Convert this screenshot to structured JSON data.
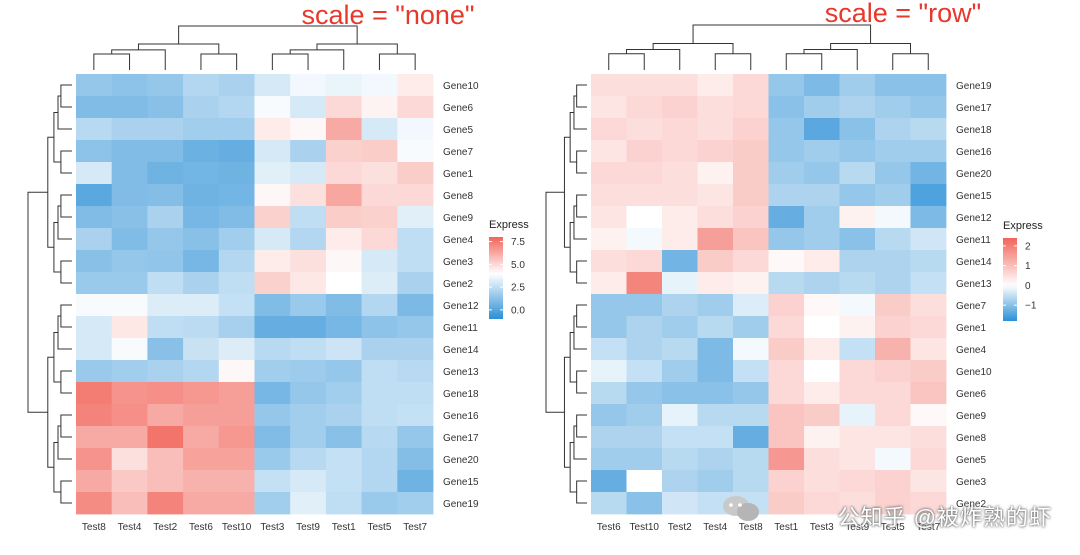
{
  "watermark": "公知乎 @被炸熟的虾",
  "chart_data": [
    {
      "type": "heatmap",
      "title": "scale = \"none\"",
      "legend": {
        "title": "Express",
        "ticks": [
          0.0,
          2.5,
          5.0,
          7.5
        ],
        "tick_labels": [
          "0.0",
          "2.5",
          "5.0",
          "7.5"
        ],
        "range": [
          -1,
          8
        ],
        "colors": [
          "#2b8fd6",
          "#ffffff",
          "#f1655a"
        ],
        "mid": 4.0
      },
      "columns": [
        "Test8",
        "Test4",
        "Test2",
        "Test6",
        "Test10",
        "Test3",
        "Test9",
        "Test1",
        "Test5",
        "Test7"
      ],
      "rows": [
        "Gene10",
        "Gene6",
        "Gene5",
        "Gene7",
        "Gene1",
        "Gene8",
        "Gene9",
        "Gene4",
        "Gene3",
        "Gene2",
        "Gene12",
        "Gene11",
        "Gene14",
        "Gene13",
        "Gene18",
        "Gene16",
        "Gene17",
        "Gene20",
        "Gene15",
        "Gene19"
      ],
      "values": [
        [
          1.5,
          1.3,
          1.5,
          2.2,
          2.0,
          3.0,
          3.7,
          3.5,
          3.7,
          4.5
        ],
        [
          1.0,
          1.0,
          1.2,
          2.0,
          2.2,
          3.8,
          3.0,
          5.0,
          4.3,
          5.0
        ],
        [
          2.3,
          2.0,
          2.0,
          1.8,
          1.8,
          4.5,
          4.2,
          6.2,
          3.0,
          3.7
        ],
        [
          1.3,
          1.0,
          1.0,
          0.5,
          0.4,
          3.0,
          2.0,
          5.2,
          5.3,
          3.8
        ],
        [
          3.0,
          1.0,
          0.6,
          0.7,
          0.6,
          3.3,
          3.0,
          5.0,
          4.8,
          5.3
        ],
        [
          0.1,
          1.0,
          1.1,
          0.6,
          0.7,
          4.2,
          4.8,
          6.3,
          5.0,
          5.0
        ],
        [
          1.0,
          1.2,
          2.0,
          0.8,
          1.0,
          5.2,
          2.5,
          5.3,
          5.2,
          3.3
        ],
        [
          2.0,
          1.0,
          1.5,
          1.2,
          1.8,
          3.0,
          2.2,
          4.5,
          5.0,
          2.5
        ],
        [
          1.2,
          1.5,
          1.4,
          0.8,
          2.2,
          4.5,
          4.8,
          4.2,
          3.0,
          2.5
        ],
        [
          1.6,
          1.6,
          2.5,
          2.0,
          2.5,
          5.2,
          4.6,
          4.0,
          3.2,
          2.0
        ],
        [
          3.8,
          3.8,
          3.2,
          3.2,
          2.6,
          1.0,
          1.6,
          1.0,
          2.2,
          0.9
        ],
        [
          3.0,
          4.6,
          2.5,
          2.4,
          1.9,
          0.4,
          0.4,
          0.8,
          1.3,
          1.5
        ],
        [
          3.0,
          3.8,
          1.2,
          2.7,
          3.2,
          2.3,
          2.5,
          2.8,
          2.0,
          2.0
        ],
        [
          1.6,
          1.8,
          2.0,
          2.2,
          4.2,
          1.8,
          1.7,
          1.5,
          2.5,
          2.3
        ],
        [
          7.4,
          6.8,
          6.9,
          6.7,
          6.5,
          0.8,
          1.5,
          1.8,
          2.5,
          2.5
        ],
        [
          7.2,
          6.9,
          6.2,
          6.5,
          6.5,
          1.5,
          1.8,
          2.0,
          2.5,
          2.6
        ],
        [
          6.2,
          6.2,
          7.6,
          6.2,
          6.7,
          1.0,
          1.8,
          1.2,
          2.3,
          1.5
        ],
        [
          6.8,
          4.8,
          5.7,
          6.4,
          6.4,
          1.6,
          2.3,
          2.6,
          2.2,
          1.1
        ],
        [
          6.2,
          5.4,
          5.7,
          6.0,
          6.0,
          2.6,
          3.0,
          2.6,
          2.2,
          0.6
        ],
        [
          7.0,
          5.7,
          7.2,
          6.2,
          6.2,
          1.8,
          3.3,
          2.5,
          1.6,
          1.8
        ]
      ]
    },
    {
      "type": "heatmap",
      "title": "scale = \"row\"",
      "legend": {
        "title": "Express",
        "ticks": [
          -1,
          0,
          1,
          2
        ],
        "tick_labels": [
          "−1",
          "0",
          "1",
          "2"
        ],
        "range": [
          -1.8,
          2.4
        ],
        "colors": [
          "#2b8fd6",
          "#ffffff",
          "#f1655a"
        ],
        "mid": 0
      },
      "columns": [
        "Test6",
        "Test10",
        "Test2",
        "Test4",
        "Test8",
        "Test1",
        "Test3",
        "Test9",
        "Test5",
        "Test7"
      ],
      "rows": [
        "Gene19",
        "Gene17",
        "Gene18",
        "Gene16",
        "Gene20",
        "Gene15",
        "Gene12",
        "Gene11",
        "Gene14",
        "Gene13",
        "Gene7",
        "Gene1",
        "Gene4",
        "Gene10",
        "Gene6",
        "Gene9",
        "Gene8",
        "Gene5",
        "Gene3",
        "Gene2"
      ],
      "values": [
        [
          0.5,
          0.5,
          0.5,
          0.3,
          0.6,
          -0.9,
          -1.1,
          -0.8,
          -1.0,
          -1.0
        ],
        [
          0.4,
          0.6,
          0.7,
          0.5,
          0.6,
          -1.0,
          -0.8,
          -0.7,
          -0.8,
          -0.9
        ],
        [
          0.6,
          0.5,
          0.6,
          0.5,
          0.7,
          -0.9,
          -1.4,
          -1.0,
          -0.7,
          -0.6
        ],
        [
          0.4,
          0.7,
          0.6,
          0.7,
          0.8,
          -0.9,
          -0.8,
          -0.9,
          -0.8,
          -0.8
        ],
        [
          0.6,
          0.6,
          0.5,
          0.2,
          0.8,
          -0.8,
          -0.9,
          -0.6,
          -0.9,
          -1.2
        ],
        [
          0.5,
          0.5,
          0.5,
          0.4,
          0.8,
          -0.7,
          -0.7,
          -0.9,
          -0.8,
          -1.5
        ],
        [
          0.4,
          0.0,
          0.3,
          0.5,
          0.7,
          -1.3,
          -0.8,
          0.2,
          -0.1,
          -1.1
        ],
        [
          0.2,
          -0.1,
          0.3,
          1.5,
          0.9,
          -0.9,
          -0.8,
          -1.0,
          -0.6,
          -0.4
        ],
        [
          0.5,
          0.6,
          -1.2,
          0.8,
          0.6,
          0.1,
          0.3,
          -0.7,
          -0.7,
          -0.6
        ],
        [
          0.3,
          1.9,
          -0.2,
          0.3,
          0.2,
          -0.6,
          -0.7,
          -0.6,
          -0.7,
          -0.5
        ],
        [
          -0.9,
          -0.9,
          -0.7,
          -0.8,
          -0.3,
          0.7,
          0.1,
          -0.1,
          0.8,
          0.5
        ],
        [
          -0.9,
          -0.7,
          -0.8,
          -0.6,
          -0.8,
          0.6,
          0.0,
          0.2,
          0.7,
          0.6
        ],
        [
          -0.5,
          -0.7,
          -0.6,
          -1.1,
          -0.1,
          0.8,
          0.3,
          -0.5,
          1.2,
          0.4
        ],
        [
          -0.2,
          -0.5,
          -0.8,
          -1.1,
          -0.5,
          0.6,
          0.0,
          0.6,
          0.7,
          0.8
        ],
        [
          -0.6,
          -0.9,
          -1.0,
          -1.0,
          -0.9,
          0.6,
          0.3,
          0.6,
          0.6,
          0.9
        ],
        [
          -0.9,
          -0.8,
          -0.2,
          -0.6,
          -0.6,
          0.9,
          0.8,
          -0.2,
          0.6,
          0.1
        ],
        [
          -0.7,
          -0.7,
          -0.5,
          -0.5,
          -1.3,
          0.9,
          0.2,
          0.4,
          0.4,
          0.5
        ],
        [
          -0.8,
          -0.8,
          -0.6,
          -0.7,
          -0.6,
          1.6,
          0.5,
          0.4,
          -0.1,
          0.6
        ],
        [
          -1.3,
          0.0,
          -0.7,
          -0.8,
          -0.6,
          0.7,
          0.5,
          0.6,
          0.7,
          0.4
        ],
        [
          -0.6,
          -1.0,
          -0.4,
          -0.5,
          -0.5,
          0.8,
          0.6,
          0.5,
          0.7,
          0.6
        ]
      ]
    }
  ]
}
